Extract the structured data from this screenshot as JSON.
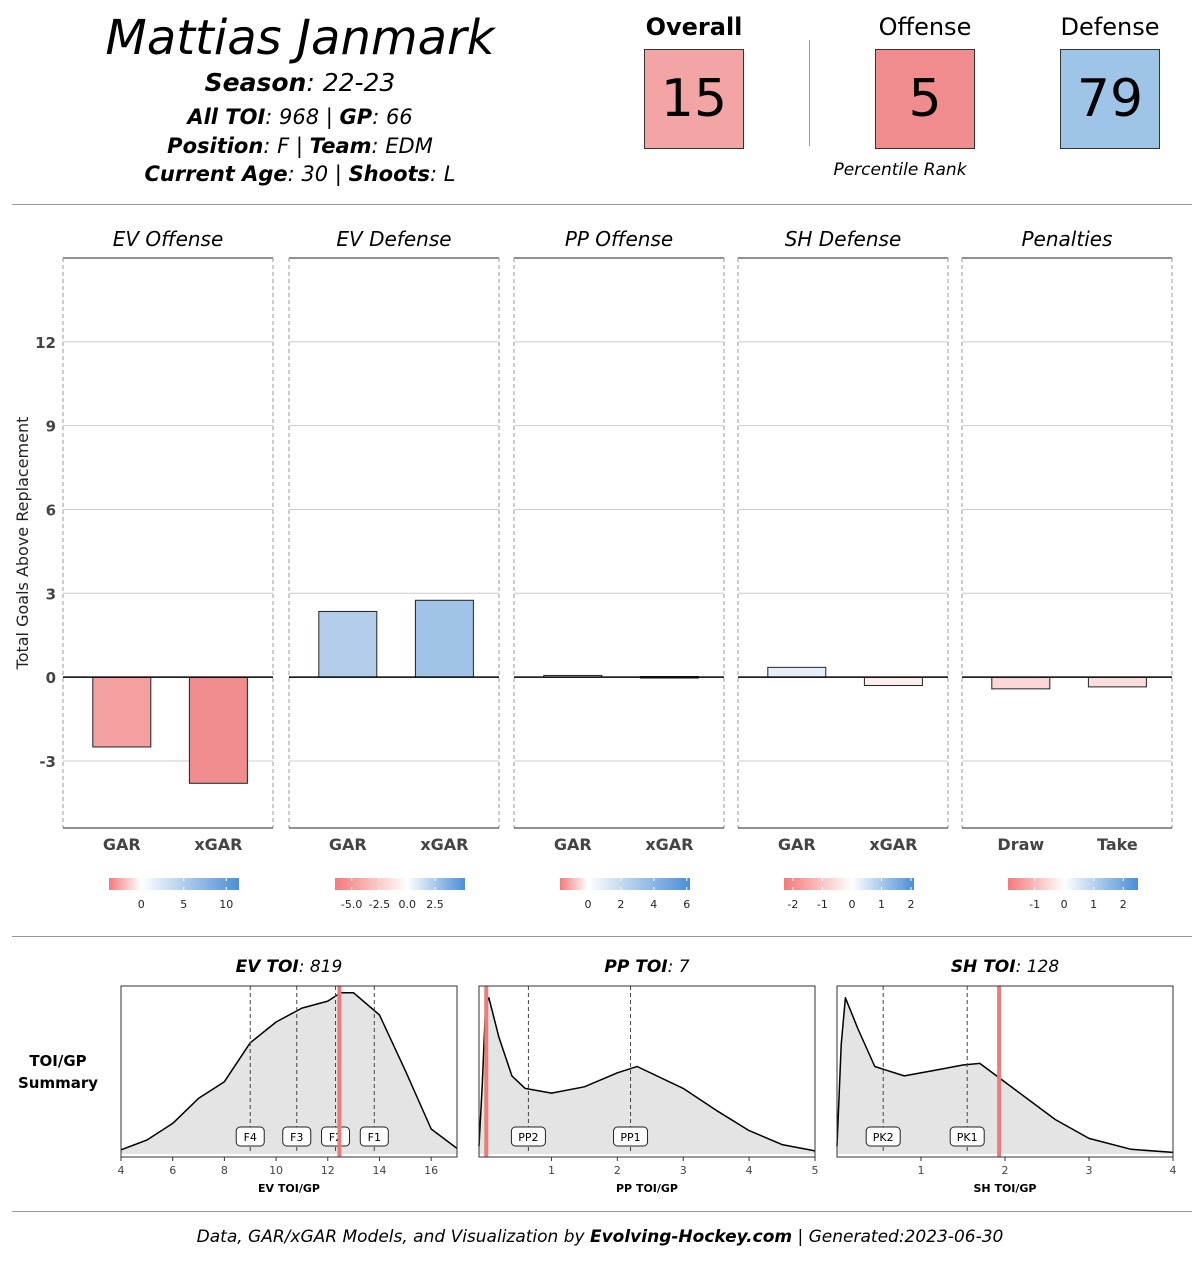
{
  "header": {
    "player_name": "Mattias Janmark",
    "season_label": "Season",
    "season_value": ": 22-23",
    "toi_label": "All TOI",
    "toi_value": ": 968 | ",
    "gp_label": "GP",
    "gp_value": ": 66",
    "position_label": "Position",
    "position_value": ": F | ",
    "team_label": "Team",
    "team_value": ": EDM",
    "age_label": "Current Age",
    "age_value": ": 30 | ",
    "shoots_label": "Shoots",
    "shoots_value": ": L"
  },
  "ratings": {
    "overall": {
      "label": "Overall",
      "value": "15",
      "color": "#f3a4a5"
    },
    "offense": {
      "label": "Offense",
      "value": "5",
      "color": "#f08c8d"
    },
    "defense": {
      "label": "Defense",
      "value": "79",
      "color": "#9ec5e8"
    },
    "note": "Percentile Rank"
  },
  "chart_data": [
    {
      "type": "bar",
      "title": "Total Goals Above Replacement",
      "ylabel": "Total Goals Above Replacement",
      "ylim": [
        -5.4,
        15
      ],
      "yticks": [
        -3,
        0,
        3,
        6,
        9,
        12
      ],
      "panels": [
        {
          "title": "EV Offense",
          "categories": [
            "GAR",
            "xGAR"
          ],
          "values": [
            -2.5,
            -3.8
          ],
          "colors": [
            "#f5a0a0",
            "#f08c8d"
          ],
          "legend": {
            "min": -3.8,
            "max": 11.5,
            "ticks": [
              "0",
              "5",
              "10"
            ],
            "tick_values": [
              0,
              5,
              10
            ]
          }
        },
        {
          "title": "EV Defense",
          "categories": [
            "GAR",
            "xGAR"
          ],
          "values": [
            2.35,
            2.75
          ],
          "colors": [
            "#b3cdea",
            "#a2c3e8"
          ],
          "legend": {
            "min": -6.5,
            "max": 5.2,
            "ticks": [
              "-5.0",
              "-2.5",
              "0.0",
              "2.5"
            ],
            "tick_values": [
              -5,
              -2.5,
              0,
              2.5
            ]
          }
        },
        {
          "title": "PP Offense",
          "categories": [
            "GAR",
            "xGAR"
          ],
          "values": [
            0.06,
            0.02
          ],
          "colors": [
            "#f4f7fb",
            "#f8f9fb"
          ],
          "legend": {
            "min": -1.7,
            "max": 6.2,
            "ticks": [
              "0",
              "2",
              "4",
              "6"
            ],
            "tick_values": [
              0,
              2,
              4,
              6
            ]
          }
        },
        {
          "title": "SH Defense",
          "categories": [
            "GAR",
            "xGAR"
          ],
          "values": [
            0.35,
            -0.3
          ],
          "colors": [
            "#e6eef8",
            "#fdeeee"
          ],
          "legend": {
            "min": -2.3,
            "max": 2.1,
            "ticks": [
              "-2",
              "-1",
              "0",
              "1",
              "2"
            ],
            "tick_values": [
              -2,
              -1,
              0,
              1,
              2
            ]
          }
        },
        {
          "title": "Penalties",
          "categories": [
            "Draw",
            "Take"
          ],
          "values": [
            -0.42,
            -0.35
          ],
          "colors": [
            "#fbd6d6",
            "#fbdfdf"
          ],
          "legend": {
            "min": -1.9,
            "max": 2.5,
            "ticks": [
              "-1",
              "0",
              "1",
              "2"
            ],
            "tick_values": [
              -1,
              0,
              1,
              2
            ]
          }
        }
      ]
    },
    {
      "type": "area",
      "title": "TOI/GP Summary",
      "row_label_1": "TOI/GP",
      "row_label_2": "Summary",
      "panels": [
        {
          "title_bold": "EV TOI",
          "title_rest": ": 819",
          "xlabel": "EV TOI/GP",
          "xlim": [
            4,
            17
          ],
          "xticks": [
            "4",
            "6",
            "8",
            "10",
            "12",
            "14",
            "16"
          ],
          "xtick_values": [
            4,
            6,
            8,
            10,
            12,
            14,
            16
          ],
          "density": [
            [
              4,
              0.03
            ],
            [
              5,
              0.1
            ],
            [
              6,
              0.22
            ],
            [
              7,
              0.4
            ],
            [
              8,
              0.52
            ],
            [
              9,
              0.8
            ],
            [
              10,
              0.95
            ],
            [
              11,
              1.05
            ],
            [
              12,
              1.1
            ],
            [
              12.5,
              1.16
            ],
            [
              13,
              1.16
            ],
            [
              14,
              1.0
            ],
            [
              15,
              0.6
            ],
            [
              16,
              0.18
            ],
            [
              17,
              0.04
            ]
          ],
          "ymax": 1.18,
          "lines": [
            {
              "label": "F4",
              "x": 9.0
            },
            {
              "label": "F3",
              "x": 10.8
            },
            {
              "label": "F2",
              "x": 12.3
            },
            {
              "label": "F1",
              "x": 13.8
            }
          ],
          "player": 12.45
        },
        {
          "title_bold": "PP TOI",
          "title_rest": ": 7",
          "xlabel": "PP TOI/GP",
          "xlim": [
            -0.1,
            5
          ],
          "xticks": [
            "1",
            "2",
            "3",
            "4",
            "5"
          ],
          "xtick_values": [
            1,
            2,
            3,
            4,
            5
          ],
          "density": [
            [
              -0.1,
              0.05
            ],
            [
              -0.05,
              0.45
            ],
            [
              0,
              0.95
            ],
            [
              0.05,
              1.0
            ],
            [
              0.2,
              0.75
            ],
            [
              0.4,
              0.5
            ],
            [
              0.6,
              0.42
            ],
            [
              1.0,
              0.39
            ],
            [
              1.5,
              0.43
            ],
            [
              2.0,
              0.52
            ],
            [
              2.3,
              0.56
            ],
            [
              3.0,
              0.42
            ],
            [
              3.5,
              0.28
            ],
            [
              4.0,
              0.15
            ],
            [
              4.5,
              0.06
            ],
            [
              5,
              0.02
            ]
          ],
          "ymax": 1.05,
          "lines": [
            {
              "label": "PP2",
              "x": 0.65
            },
            {
              "label": "PP1",
              "x": 2.2
            }
          ],
          "player": 0.01
        },
        {
          "title_bold": "SH TOI",
          "title_rest": ": 128",
          "xlabel": "SH TOI/GP",
          "xlim": [
            0,
            4
          ],
          "xticks": [
            "1",
            "2",
            "3",
            "4"
          ],
          "xtick_values": [
            1,
            2,
            3,
            4
          ],
          "density": [
            [
              0,
              0.05
            ],
            [
              0.05,
              0.7
            ],
            [
              0.1,
              1.0
            ],
            [
              0.25,
              0.8
            ],
            [
              0.45,
              0.56
            ],
            [
              0.8,
              0.5
            ],
            [
              1.2,
              0.54
            ],
            [
              1.5,
              0.57
            ],
            [
              1.7,
              0.58
            ],
            [
              2.1,
              0.42
            ],
            [
              2.6,
              0.22
            ],
            [
              3.0,
              0.1
            ],
            [
              3.5,
              0.03
            ],
            [
              4,
              0.01
            ]
          ],
          "ymax": 1.05,
          "lines": [
            {
              "label": "PK2",
              "x": 0.55
            },
            {
              "label": "PK1",
              "x": 1.55
            }
          ],
          "player": 1.93
        }
      ]
    }
  ],
  "footer": {
    "text_1": "Data, GAR/xGAR Models, and Visualization by ",
    "brand": "Evolving-Hockey.com",
    "text_2": "  | Generated:2023-06-30"
  }
}
